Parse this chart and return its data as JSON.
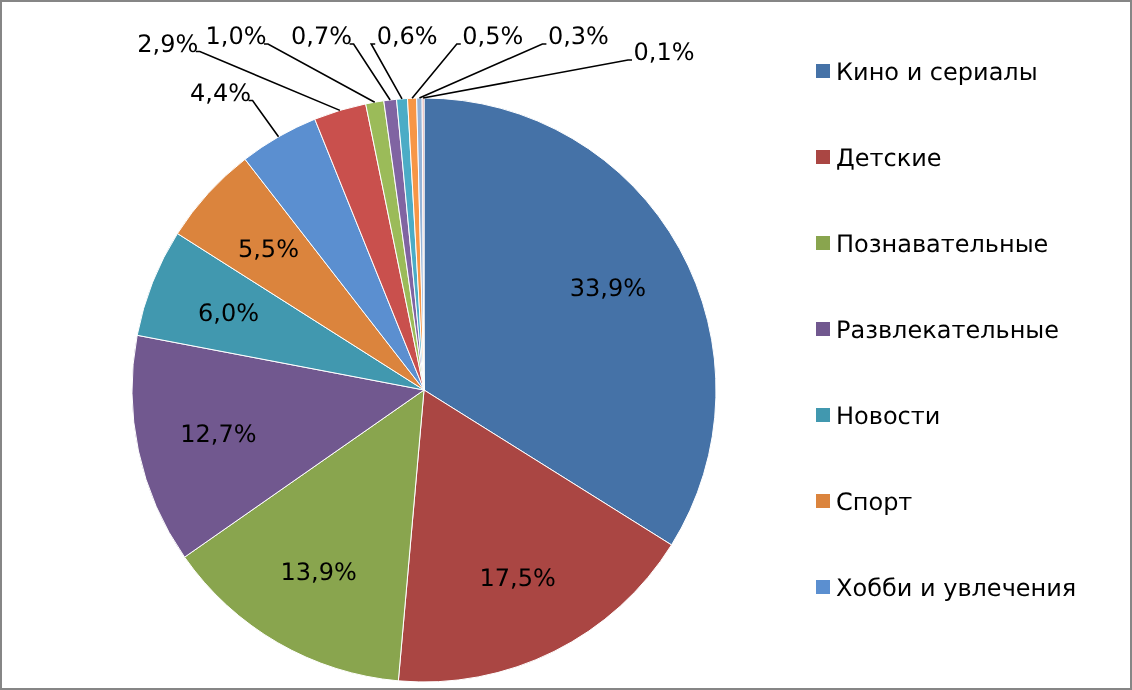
{
  "chart_data": {
    "type": "pie",
    "categories": [
      "Кино и сериалы",
      "Детские",
      "Познавательные",
      "Развлекательные",
      "Новости",
      "Спорт",
      "Хобби и увлечения",
      null,
      null,
      null,
      null,
      null,
      null,
      null
    ],
    "values": [
      33.9,
      17.5,
      13.9,
      12.7,
      6.0,
      5.5,
      4.4,
      2.9,
      1.0,
      0.7,
      0.6,
      0.5,
      0.3,
      0.1
    ],
    "value_labels": [
      "33,9%",
      "17,5%",
      "13,9%",
      "12,7%",
      "6,0%",
      "5,5%",
      "4,4%",
      "2,9%",
      "1,0%",
      "0,7%",
      "0,6%",
      "0,5%",
      "0,3%",
      "0,1%"
    ],
    "colors": [
      "#4572a7",
      "#aa4643",
      "#89a54e",
      "#71588f",
      "#4198af",
      "#db843d",
      "#5b8fd0",
      "#c9504d",
      "#9bbb59",
      "#8064a2",
      "#4bacc6",
      "#f79646",
      "#95b3d7",
      "#d99694"
    ],
    "legend": "right"
  }
}
